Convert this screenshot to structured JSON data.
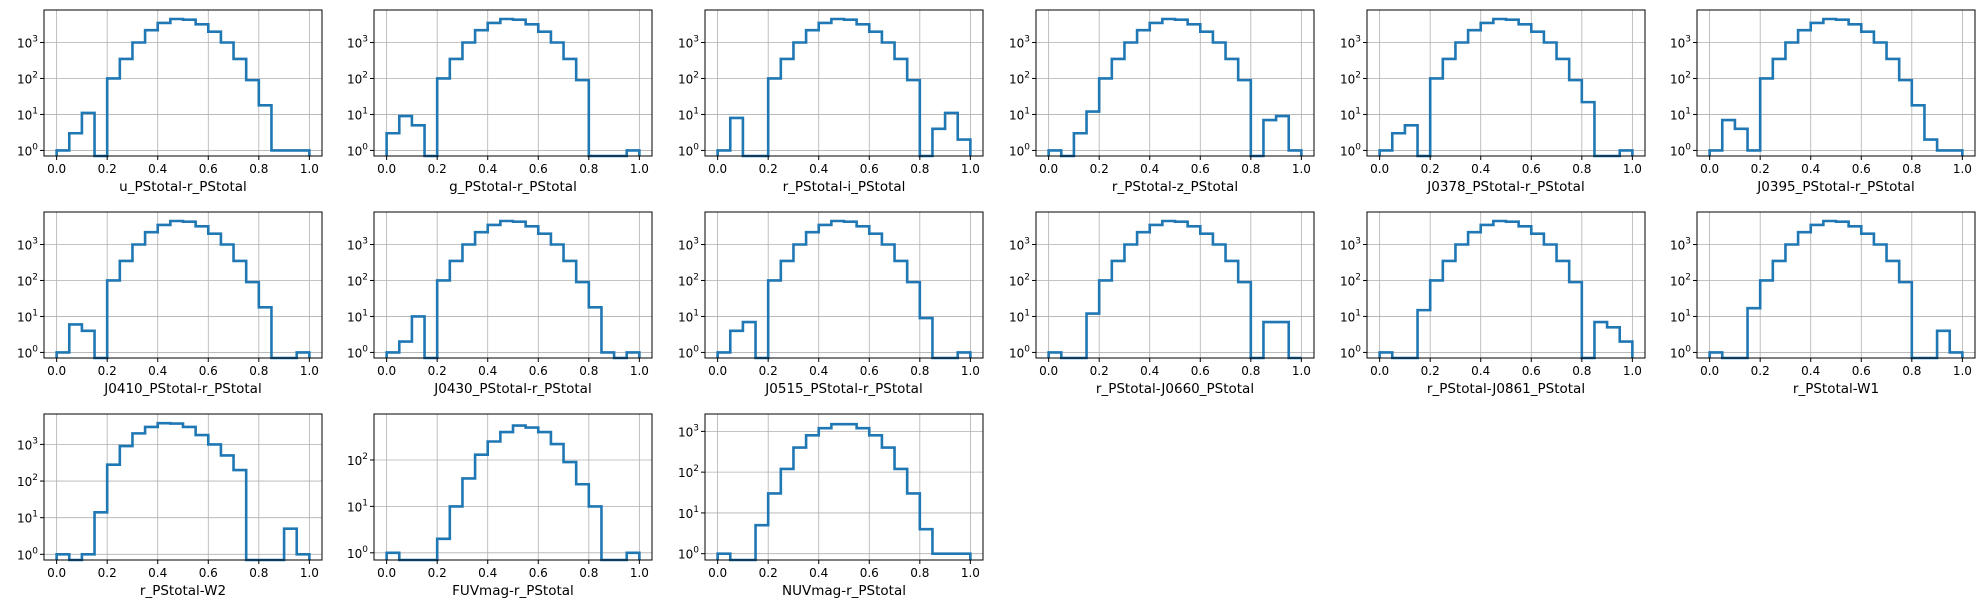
{
  "chart_data": [
    {
      "type": "histogram",
      "xlabel": "u_PStotal-r_PStotal",
      "xlim": [
        0,
        1
      ],
      "yscale": "log",
      "grid": true,
      "color": "#1f77b4",
      "xticks": [
        "0.0",
        "0.2",
        "0.4",
        "0.6",
        "0.8",
        "1.0"
      ],
      "yticks": [
        {
          "value": 1,
          "label": "10^0"
        },
        {
          "value": 10,
          "label": "10^1"
        },
        {
          "value": 100,
          "label": "10^2"
        },
        {
          "value": 1000,
          "label": "10^3"
        }
      ],
      "bin_edges": [
        0,
        0.05,
        0.1,
        0.15,
        0.2,
        0.25,
        0.3,
        0.35,
        0.4,
        0.45,
        0.5,
        0.55,
        0.6,
        0.65,
        0.7,
        0.75,
        0.8,
        0.85,
        0.9,
        0.95,
        1.0
      ],
      "counts": [
        1,
        3,
        11,
        0,
        100,
        350,
        1000,
        2200,
        3500,
        4500,
        4300,
        3200,
        2000,
        1000,
        350,
        90,
        18,
        1,
        1,
        1
      ]
    },
    {
      "type": "histogram",
      "xlabel": "g_PStotal-r_PStotal",
      "xlim": [
        0,
        1
      ],
      "yscale": "log",
      "grid": true,
      "color": "#1f77b4",
      "xticks": [
        "0.0",
        "0.2",
        "0.4",
        "0.6",
        "0.8",
        "1.0"
      ],
      "yticks": [
        {
          "value": 1,
          "label": "10^0"
        },
        {
          "value": 10,
          "label": "10^1"
        },
        {
          "value": 100,
          "label": "10^2"
        },
        {
          "value": 1000,
          "label": "10^3"
        }
      ],
      "bin_edges": [
        0,
        0.05,
        0.1,
        0.15,
        0.2,
        0.25,
        0.3,
        0.35,
        0.4,
        0.45,
        0.5,
        0.55,
        0.6,
        0.65,
        0.7,
        0.75,
        0.8,
        0.85,
        0.9,
        0.95,
        1.0
      ],
      "counts": [
        3,
        9,
        5,
        0,
        100,
        350,
        1000,
        2200,
        3500,
        4500,
        4300,
        3200,
        2000,
        1000,
        350,
        90,
        0,
        0,
        0,
        1
      ]
    },
    {
      "type": "histogram",
      "xlabel": "r_PStotal-i_PStotal",
      "xlim": [
        0,
        1
      ],
      "yscale": "log",
      "grid": true,
      "color": "#1f77b4",
      "xticks": [
        "0.0",
        "0.2",
        "0.4",
        "0.6",
        "0.8",
        "1.0"
      ],
      "yticks": [
        {
          "value": 1,
          "label": "10^0"
        },
        {
          "value": 10,
          "label": "10^1"
        },
        {
          "value": 100,
          "label": "10^2"
        },
        {
          "value": 1000,
          "label": "10^3"
        }
      ],
      "bin_edges": [
        0,
        0.05,
        0.1,
        0.15,
        0.2,
        0.25,
        0.3,
        0.35,
        0.4,
        0.45,
        0.5,
        0.55,
        0.6,
        0.65,
        0.7,
        0.75,
        0.8,
        0.85,
        0.9,
        0.95,
        1.0
      ],
      "counts": [
        1,
        8,
        0,
        0,
        100,
        350,
        1000,
        2200,
        3500,
        4500,
        4300,
        3200,
        2000,
        1000,
        350,
        90,
        0,
        4,
        11,
        2
      ]
    },
    {
      "type": "histogram",
      "xlabel": "r_PStotal-z_PStotal",
      "xlim": [
        0,
        1
      ],
      "yscale": "log",
      "grid": true,
      "color": "#1f77b4",
      "xticks": [
        "0.0",
        "0.2",
        "0.4",
        "0.6",
        "0.8",
        "1.0"
      ],
      "yticks": [
        {
          "value": 1,
          "label": "10^0"
        },
        {
          "value": 10,
          "label": "10^1"
        },
        {
          "value": 100,
          "label": "10^2"
        },
        {
          "value": 1000,
          "label": "10^3"
        }
      ],
      "bin_edges": [
        0,
        0.05,
        0.1,
        0.15,
        0.2,
        0.25,
        0.3,
        0.35,
        0.4,
        0.45,
        0.5,
        0.55,
        0.6,
        0.65,
        0.7,
        0.75,
        0.8,
        0.85,
        0.9,
        0.95,
        1.0
      ],
      "counts": [
        1,
        0,
        3,
        12,
        100,
        350,
        1000,
        2200,
        3500,
        4500,
        4300,
        3200,
        2000,
        1000,
        350,
        90,
        0,
        7,
        9,
        1
      ]
    },
    {
      "type": "histogram",
      "xlabel": "J0378_PStotal-r_PStotal",
      "xlim": [
        0,
        1
      ],
      "yscale": "log",
      "grid": true,
      "color": "#1f77b4",
      "xticks": [
        "0.0",
        "0.2",
        "0.4",
        "0.6",
        "0.8",
        "1.0"
      ],
      "yticks": [
        {
          "value": 1,
          "label": "10^0"
        },
        {
          "value": 10,
          "label": "10^1"
        },
        {
          "value": 100,
          "label": "10^2"
        },
        {
          "value": 1000,
          "label": "10^3"
        }
      ],
      "bin_edges": [
        0,
        0.05,
        0.1,
        0.15,
        0.2,
        0.25,
        0.3,
        0.35,
        0.4,
        0.45,
        0.5,
        0.55,
        0.6,
        0.65,
        0.7,
        0.75,
        0.8,
        0.85,
        0.9,
        0.95,
        1.0
      ],
      "counts": [
        1,
        3,
        5,
        0,
        100,
        350,
        1000,
        2200,
        3500,
        4500,
        4300,
        3200,
        2000,
        1000,
        350,
        90,
        22,
        0,
        0,
        1
      ]
    },
    {
      "type": "histogram",
      "xlabel": "J0395_PStotal-r_PStotal",
      "xlim": [
        0,
        1
      ],
      "yscale": "log",
      "grid": true,
      "color": "#1f77b4",
      "xticks": [
        "0.0",
        "0.2",
        "0.4",
        "0.6",
        "0.8",
        "1.0"
      ],
      "yticks": [
        {
          "value": 1,
          "label": "10^0"
        },
        {
          "value": 10,
          "label": "10^1"
        },
        {
          "value": 100,
          "label": "10^2"
        },
        {
          "value": 1000,
          "label": "10^3"
        }
      ],
      "bin_edges": [
        0,
        0.05,
        0.1,
        0.15,
        0.2,
        0.25,
        0.3,
        0.35,
        0.4,
        0.45,
        0.5,
        0.55,
        0.6,
        0.65,
        0.7,
        0.75,
        0.8,
        0.85,
        0.9,
        0.95,
        1.0
      ],
      "counts": [
        1,
        7,
        4,
        1,
        100,
        350,
        1000,
        2200,
        3500,
        4500,
        4300,
        3200,
        2000,
        1000,
        350,
        90,
        18,
        2,
        1,
        1
      ]
    },
    {
      "type": "histogram",
      "xlabel": "J0410_PStotal-r_PStotal",
      "xlim": [
        0,
        1
      ],
      "yscale": "log",
      "grid": true,
      "color": "#1f77b4",
      "xticks": [
        "0.0",
        "0.2",
        "0.4",
        "0.6",
        "0.8",
        "1.0"
      ],
      "yticks": [
        {
          "value": 1,
          "label": "10^0"
        },
        {
          "value": 10,
          "label": "10^1"
        },
        {
          "value": 100,
          "label": "10^2"
        },
        {
          "value": 1000,
          "label": "10^3"
        }
      ],
      "bin_edges": [
        0,
        0.05,
        0.1,
        0.15,
        0.2,
        0.25,
        0.3,
        0.35,
        0.4,
        0.45,
        0.5,
        0.55,
        0.6,
        0.65,
        0.7,
        0.75,
        0.8,
        0.85,
        0.9,
        0.95,
        1.0
      ],
      "counts": [
        1,
        6,
        4,
        0,
        100,
        350,
        1000,
        2200,
        3500,
        4500,
        4300,
        3200,
        2000,
        1000,
        350,
        90,
        18,
        0,
        0,
        1
      ]
    },
    {
      "type": "histogram",
      "xlabel": "J0430_PStotal-r_PStotal",
      "xlim": [
        0,
        1
      ],
      "yscale": "log",
      "grid": true,
      "color": "#1f77b4",
      "xticks": [
        "0.0",
        "0.2",
        "0.4",
        "0.6",
        "0.8",
        "1.0"
      ],
      "yticks": [
        {
          "value": 1,
          "label": "10^0"
        },
        {
          "value": 10,
          "label": "10^1"
        },
        {
          "value": 100,
          "label": "10^2"
        },
        {
          "value": 1000,
          "label": "10^3"
        }
      ],
      "bin_edges": [
        0,
        0.05,
        0.1,
        0.15,
        0.2,
        0.25,
        0.3,
        0.35,
        0.4,
        0.45,
        0.5,
        0.55,
        0.6,
        0.65,
        0.7,
        0.75,
        0.8,
        0.85,
        0.9,
        0.95,
        1.0
      ],
      "counts": [
        1,
        2,
        10,
        0,
        100,
        350,
        1000,
        2200,
        3500,
        4500,
        4300,
        3200,
        2000,
        1000,
        350,
        90,
        18,
        1,
        0,
        1
      ]
    },
    {
      "type": "histogram",
      "xlabel": "J0515_PStotal-r_PStotal",
      "xlim": [
        0,
        1
      ],
      "yscale": "log",
      "grid": true,
      "color": "#1f77b4",
      "xticks": [
        "0.0",
        "0.2",
        "0.4",
        "0.6",
        "0.8",
        "1.0"
      ],
      "yticks": [
        {
          "value": 1,
          "label": "10^0"
        },
        {
          "value": 10,
          "label": "10^1"
        },
        {
          "value": 100,
          "label": "10^2"
        },
        {
          "value": 1000,
          "label": "10^3"
        }
      ],
      "bin_edges": [
        0,
        0.05,
        0.1,
        0.15,
        0.2,
        0.25,
        0.3,
        0.35,
        0.4,
        0.45,
        0.5,
        0.55,
        0.6,
        0.65,
        0.7,
        0.75,
        0.8,
        0.85,
        0.9,
        0.95,
        1.0
      ],
      "counts": [
        1,
        4,
        7,
        0,
        100,
        350,
        1000,
        2200,
        3500,
        4500,
        4300,
        3200,
        2000,
        1000,
        350,
        90,
        9,
        0,
        0,
        1
      ]
    },
    {
      "type": "histogram",
      "xlabel": "r_PStotal-J0660_PStotal",
      "xlim": [
        0,
        1
      ],
      "yscale": "log",
      "grid": true,
      "color": "#1f77b4",
      "xticks": [
        "0.0",
        "0.2",
        "0.4",
        "0.6",
        "0.8",
        "1.0"
      ],
      "yticks": [
        {
          "value": 1,
          "label": "10^0"
        },
        {
          "value": 10,
          "label": "10^1"
        },
        {
          "value": 100,
          "label": "10^2"
        },
        {
          "value": 1000,
          "label": "10^3"
        }
      ],
      "bin_edges": [
        0,
        0.05,
        0.1,
        0.15,
        0.2,
        0.25,
        0.3,
        0.35,
        0.4,
        0.45,
        0.5,
        0.55,
        0.6,
        0.65,
        0.7,
        0.75,
        0.8,
        0.85,
        0.9,
        0.95,
        1.0
      ],
      "counts": [
        1,
        0,
        0,
        12,
        100,
        350,
        1000,
        2200,
        3500,
        4500,
        4300,
        3200,
        2000,
        1000,
        350,
        90,
        0,
        7,
        7,
        0
      ]
    },
    {
      "type": "histogram",
      "xlabel": "r_PStotal-J0861_PStotal",
      "xlim": [
        0,
        1
      ],
      "yscale": "log",
      "grid": true,
      "color": "#1f77b4",
      "xticks": [
        "0.0",
        "0.2",
        "0.4",
        "0.6",
        "0.8",
        "1.0"
      ],
      "yticks": [
        {
          "value": 1,
          "label": "10^0"
        },
        {
          "value": 10,
          "label": "10^1"
        },
        {
          "value": 100,
          "label": "10^2"
        },
        {
          "value": 1000,
          "label": "10^3"
        }
      ],
      "bin_edges": [
        0,
        0.05,
        0.1,
        0.15,
        0.2,
        0.25,
        0.3,
        0.35,
        0.4,
        0.45,
        0.5,
        0.55,
        0.6,
        0.65,
        0.7,
        0.75,
        0.8,
        0.85,
        0.9,
        0.95,
        1.0
      ],
      "counts": [
        1,
        0,
        0,
        15,
        100,
        350,
        1000,
        2200,
        3500,
        4500,
        4300,
        3200,
        2000,
        1000,
        350,
        90,
        0,
        7,
        5,
        2
      ]
    },
    {
      "type": "histogram",
      "xlabel": "r_PStotal-W1",
      "xlim": [
        0,
        1
      ],
      "yscale": "log",
      "grid": true,
      "color": "#1f77b4",
      "xticks": [
        "0.0",
        "0.2",
        "0.4",
        "0.6",
        "0.8",
        "1.0"
      ],
      "yticks": [
        {
          "value": 1,
          "label": "10^0"
        },
        {
          "value": 10,
          "label": "10^1"
        },
        {
          "value": 100,
          "label": "10^2"
        },
        {
          "value": 1000,
          "label": "10^3"
        }
      ],
      "bin_edges": [
        0,
        0.05,
        0.1,
        0.15,
        0.2,
        0.25,
        0.3,
        0.35,
        0.4,
        0.45,
        0.5,
        0.55,
        0.6,
        0.65,
        0.7,
        0.75,
        0.8,
        0.85,
        0.9,
        0.95,
        1.0
      ],
      "counts": [
        1,
        0,
        0,
        17,
        100,
        350,
        1000,
        2200,
        3500,
        4500,
        4300,
        3200,
        2000,
        1000,
        350,
        90,
        0,
        0,
        4,
        1
      ]
    },
    {
      "type": "histogram",
      "xlabel": "r_PStotal-W2",
      "xlim": [
        0,
        1
      ],
      "yscale": "log",
      "grid": true,
      "color": "#1f77b4",
      "xticks": [
        "0.0",
        "0.2",
        "0.4",
        "0.6",
        "0.8",
        "1.0"
      ],
      "yticks": [
        {
          "value": 1,
          "label": "10^0"
        },
        {
          "value": 10,
          "label": "10^1"
        },
        {
          "value": 100,
          "label": "10^2"
        },
        {
          "value": 1000,
          "label": "10^3"
        }
      ],
      "bin_edges": [
        0,
        0.05,
        0.1,
        0.15,
        0.2,
        0.25,
        0.3,
        0.35,
        0.4,
        0.45,
        0.5,
        0.55,
        0.6,
        0.65,
        0.7,
        0.75,
        0.8,
        0.85,
        0.9,
        0.95,
        1.0
      ],
      "counts": [
        1,
        0,
        1,
        14,
        280,
        900,
        2000,
        3000,
        3800,
        3700,
        3000,
        1800,
        1000,
        500,
        200,
        0,
        0,
        0,
        5,
        1
      ]
    },
    {
      "type": "histogram",
      "xlabel": "FUVmag-r_PStotal",
      "xlim": [
        0,
        1
      ],
      "yscale": "log",
      "grid": true,
      "color": "#1f77b4",
      "xticks": [
        "0.0",
        "0.2",
        "0.4",
        "0.6",
        "0.8",
        "1.0"
      ],
      "yticks": [
        {
          "value": 1,
          "label": "10^0"
        },
        {
          "value": 10,
          "label": "10^1"
        },
        {
          "value": 100,
          "label": "10^2"
        }
      ],
      "bin_edges": [
        0,
        0.05,
        0.1,
        0.15,
        0.2,
        0.25,
        0.3,
        0.35,
        0.4,
        0.45,
        0.5,
        0.55,
        0.6,
        0.65,
        0.7,
        0.75,
        0.8,
        0.85,
        0.9,
        0.95,
        1.0
      ],
      "counts": [
        1,
        0,
        0,
        0,
        2,
        10,
        40,
        130,
        250,
        400,
        550,
        500,
        400,
        220,
        90,
        30,
        10,
        0,
        0,
        1
      ]
    },
    {
      "type": "histogram",
      "xlabel": "NUVmag-r_PStotal",
      "xlim": [
        0,
        1
      ],
      "yscale": "log",
      "grid": true,
      "color": "#1f77b4",
      "xticks": [
        "0.0",
        "0.2",
        "0.4",
        "0.6",
        "0.8",
        "1.0"
      ],
      "yticks": [
        {
          "value": 1,
          "label": "10^0"
        },
        {
          "value": 10,
          "label": "10^1"
        },
        {
          "value": 100,
          "label": "10^2"
        },
        {
          "value": 1000,
          "label": "10^3"
        }
      ],
      "bin_edges": [
        0,
        0.05,
        0.1,
        0.15,
        0.2,
        0.25,
        0.3,
        0.35,
        0.4,
        0.45,
        0.5,
        0.55,
        0.6,
        0.65,
        0.7,
        0.75,
        0.8,
        0.85,
        0.9,
        0.95,
        1.0
      ],
      "counts": [
        1,
        0,
        0,
        5,
        30,
        120,
        400,
        800,
        1200,
        1500,
        1500,
        1200,
        800,
        400,
        120,
        30,
        4,
        1,
        1,
        1
      ]
    }
  ]
}
